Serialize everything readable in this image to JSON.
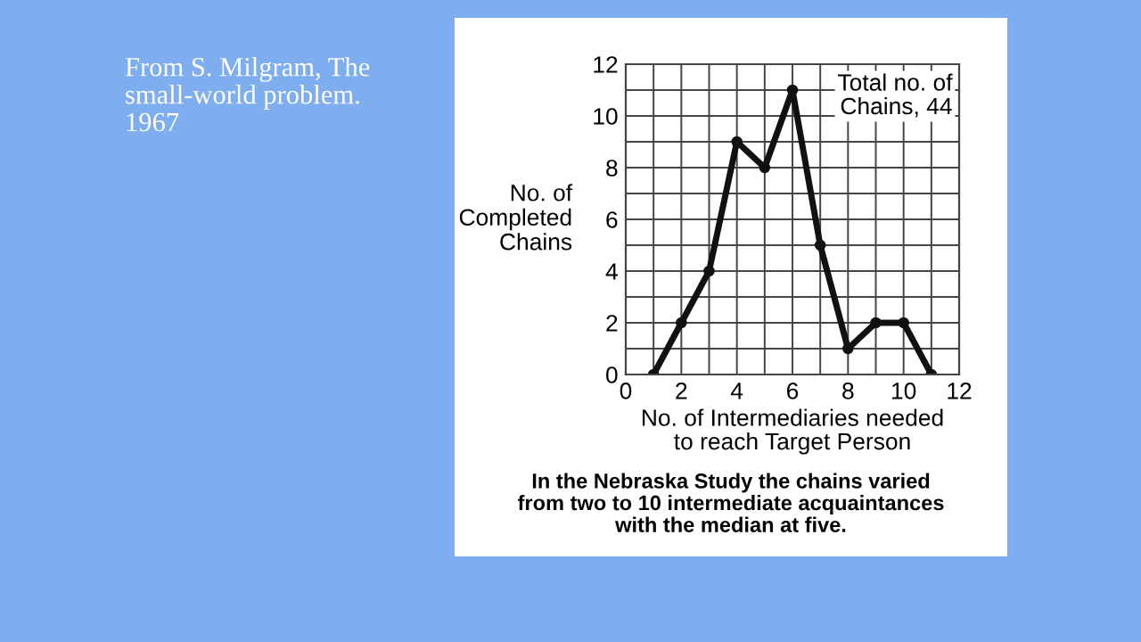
{
  "chart_data": {
    "type": "line",
    "xlabel": "No. of Intermediaries needed\nto reach Target Person",
    "ylabel": "No. of\nCompleted\nChains",
    "x": [
      1,
      2,
      3,
      4,
      5,
      6,
      7,
      8,
      9,
      10,
      11
    ],
    "series": [
      {
        "color": "#111111",
        "values": [
          0,
          2,
          4,
          9,
          8,
          11,
          5,
          1,
          2,
          2,
          0
        ]
      }
    ],
    "xlim": [
      0,
      12
    ],
    "ylim": [
      0,
      12
    ],
    "xticks": [
      0,
      {
        "value": 1,
        "label": null
      },
      2,
      {
        "value": 3,
        "label": null
      },
      4,
      {
        "value": 5,
        "label": null
      },
      6,
      {
        "value": 7,
        "label": null
      },
      8,
      {
        "value": 9,
        "label": null
      },
      10,
      {
        "value": 11,
        "label": null
      },
      12
    ],
    "yticks": [
      0,
      {
        "value": 1,
        "label": null
      },
      2,
      {
        "value": 3,
        "label": null
      },
      4,
      {
        "value": 5,
        "label": null
      },
      6,
      {
        "value": 7,
        "label": null
      },
      8,
      {
        "value": 9,
        "label": null
      },
      10,
      {
        "value": 11,
        "label": null
      },
      12
    ],
    "grid": true,
    "marker": "circle",
    "line_style": "solid",
    "legend": false,
    "annotations": [
      "Total no. of\nChains, 44",
      "In the Nebraska Study the chains varied\nfrom two to 10 intermediate acquaintances\nwith the median at five.",
      "From S. Milgram, The\nsmall-world problem.\n1967"
    ]
  }
}
